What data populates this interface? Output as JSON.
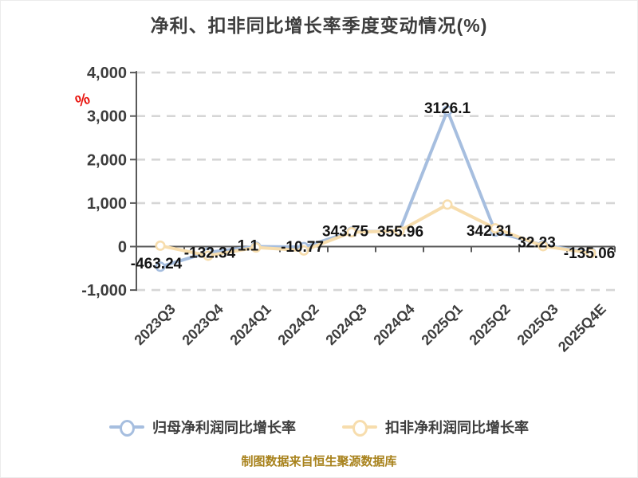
{
  "title": "净利、扣非同比增长率季度变动情况(%)",
  "annotation_percent": "%",
  "footer": "制图数据来自恒生聚源数据库",
  "legend": [
    {
      "label": "归母净利润同比增长率",
      "color": "#a6bedf"
    },
    {
      "label": "扣非净利润同比增长率",
      "color": "#f7ddad"
    }
  ],
  "colors": {
    "series_net_profit": "#a6bedf",
    "series_non_recurring": "#f7ddad",
    "marker_fill": "#ffffff",
    "title_text": "#3d3d3d",
    "axis_text": "#3d3d3d",
    "data_label_text": "#141414",
    "grid_line": "#d6d6d6",
    "axis_line": "#595959",
    "footer_text": "#a8821c",
    "annotation_red": "#e8120c"
  },
  "chart_data": {
    "type": "line",
    "title": "净利、扣非同比增长率季度变动情况(%)",
    "categories": [
      "2023Q3",
      "2023Q4",
      "2024Q1",
      "2024Q2",
      "2024Q3",
      "2024Q4",
      "2025Q1",
      "2025Q2",
      "2025Q3",
      "2025Q4E"
    ],
    "series": [
      {
        "name": "归母净利润同比增长率",
        "color": "#a6bedf",
        "values": [
          -463.24,
          -132.34,
          1.1,
          -10.77,
          343.75,
          355.96,
          3126.1,
          342.31,
          32.23,
          -135.06
        ],
        "labels": [
          "-463.24",
          "-132.34",
          "1.1",
          "-10.77",
          "343.75",
          "355.96",
          "3126.1",
          "342.31",
          "32.23",
          "-135.06"
        ]
      },
      {
        "name": "扣非净利润同比增长率",
        "color": "#f7ddad",
        "values": [
          20,
          -210,
          -20,
          -90,
          330,
          360,
          965,
          420,
          10,
          -150
        ],
        "labels": [],
        "note": "values estimated from pixel positions; no data labels shown for this series"
      }
    ],
    "xlabel": "",
    "ylabel": "",
    "ylim": [
      -1000,
      4000
    ],
    "yticks": [
      "4,000",
      "3,000",
      "2,000",
      "1,000",
      "0",
      "-1,000"
    ],
    "ytick_values": [
      4000,
      3000,
      2000,
      1000,
      0,
      -1000
    ],
    "grid": "horizontal dashed, solid axis line at 0",
    "legend_position": "bottom"
  }
}
